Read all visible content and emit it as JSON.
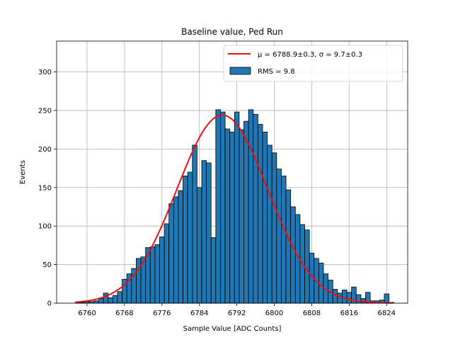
{
  "chart_data": {
    "type": "bar",
    "title": "Baseline value, Ped Run",
    "xlabel": "Sample Value [ADC Counts]",
    "ylabel": "Events",
    "xlim": [
      6753.5,
      6828.5
    ],
    "ylim": [
      0,
      340
    ],
    "xticks": [
      6760,
      6768,
      6776,
      6784,
      6792,
      6800,
      6808,
      6816,
      6824
    ],
    "yticks": [
      0,
      50,
      100,
      150,
      200,
      250,
      300
    ],
    "grid": true,
    "legend_position": "top-right",
    "bar_color": "#1f77b4",
    "fit_color": "#e81010",
    "bins": {
      "start": 6757.5,
      "width": 1,
      "values": [
        1,
        1,
        2,
        2,
        3,
        6,
        13,
        7,
        10,
        15,
        31,
        38,
        45,
        58,
        60,
        72,
        73,
        76,
        86,
        103,
        129,
        138,
        146,
        165,
        170,
        205,
        150,
        185,
        182,
        85,
        251,
        248,
        226,
        222,
        248,
        225,
        236,
        251,
        245,
        232,
        222,
        205,
        195,
        174,
        165,
        147,
        125,
        115,
        102,
        95,
        65,
        58,
        52,
        38,
        30,
        18,
        13,
        17,
        14,
        21,
        11,
        6,
        14,
        3,
        3,
        4,
        12,
        1
      ]
    },
    "fit": {
      "mu": 6788.9,
      "sigma": 9.7,
      "amplitude": 244,
      "x_range": [
        6757.5,
        6825
      ]
    },
    "legend": [
      {
        "kind": "line",
        "label": "μ = 6788.9±0.3, σ = 9.7±0.3"
      },
      {
        "kind": "patch",
        "label": "RMS = 9.8"
      }
    ]
  }
}
